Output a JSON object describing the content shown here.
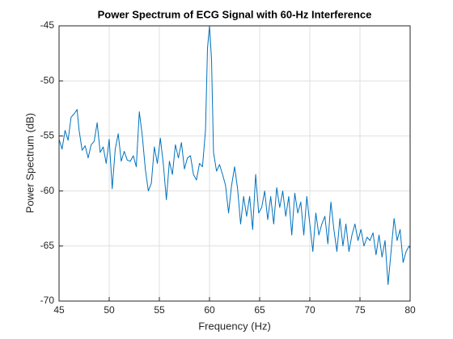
{
  "chart_data": {
    "type": "line",
    "title": "Power Spectrum of ECG Signal with 60-Hz Interference",
    "xlabel": "Frequency (Hz)",
    "ylabel": "Power Spectrum (dB)",
    "xlim": [
      45,
      80
    ],
    "xticks": [
      45,
      50,
      55,
      60,
      65,
      70,
      75,
      80
    ],
    "ylim": [
      -70,
      -45
    ],
    "yticks": [
      -70,
      -65,
      -60,
      -55,
      -50,
      -45
    ],
    "grid": true,
    "x": [
      45,
      45.3,
      45.6,
      45.9,
      46.2,
      46.5,
      46.8,
      47,
      47.3,
      47.6,
      47.9,
      48.2,
      48.5,
      48.8,
      49.1,
      49.4,
      49.7,
      50,
      50.3,
      50.6,
      50.9,
      51.2,
      51.5,
      51.8,
      52.1,
      52.4,
      52.7,
      53,
      53.3,
      53.6,
      53.9,
      54.2,
      54.5,
      54.8,
      55.1,
      55.4,
      55.7,
      56,
      56.3,
      56.6,
      56.9,
      57.2,
      57.5,
      57.8,
      58.1,
      58.4,
      58.7,
      59,
      59.3,
      59.6,
      59.8,
      60,
      60.2,
      60.4,
      60.7,
      61,
      61.3,
      61.6,
      61.9,
      62.2,
      62.5,
      62.8,
      63.1,
      63.4,
      63.7,
      64,
      64.3,
      64.6,
      64.9,
      65.2,
      65.5,
      65.8,
      66.1,
      66.4,
      66.7,
      67,
      67.3,
      67.6,
      67.9,
      68.2,
      68.5,
      68.8,
      69.1,
      69.4,
      69.7,
      70,
      70.3,
      70.6,
      70.9,
      71.2,
      71.5,
      71.8,
      72.1,
      72.4,
      72.7,
      73,
      73.3,
      73.6,
      73.9,
      74.2,
      74.5,
      74.8,
      75.1,
      75.4,
      75.7,
      76,
      76.3,
      76.6,
      76.9,
      77.2,
      77.5,
      77.8,
      78.1,
      78.4,
      78.7,
      79,
      79.3,
      79.6,
      79.9,
      80
    ],
    "series": [
      {
        "name": "Power Spectrum",
        "color": "#0072bd",
        "values": [
          -55.3,
          -56.2,
          -54.5,
          -55.4,
          -53.3,
          -53,
          -52.6,
          -54.5,
          -56.3,
          -55.9,
          -57,
          -55.8,
          -55.5,
          -53.8,
          -56.5,
          -56,
          -57.5,
          -55.3,
          -59.8,
          -56.2,
          -54.8,
          -57.3,
          -56.4,
          -57.2,
          -57.3,
          -56.8,
          -57.8,
          -52.8,
          -55,
          -58,
          -60,
          -59.3,
          -56,
          -57.5,
          -55.2,
          -57.6,
          -60.8,
          -57.3,
          -58.5,
          -55.8,
          -57,
          -55.6,
          -58,
          -57,
          -56.8,
          -58.5,
          -59,
          -57.5,
          -57.8,
          -54.5,
          -47,
          -45,
          -48,
          -56.5,
          -58.2,
          -57.6,
          -58.5,
          -59.5,
          -62,
          -59.5,
          -57.8,
          -59.8,
          -63,
          -60.5,
          -62.3,
          -60.5,
          -63.5,
          -58.5,
          -62,
          -61.5,
          -60,
          -62.6,
          -60.5,
          -63,
          -59.7,
          -61.5,
          -60,
          -62.3,
          -60.5,
          -64,
          -60.2,
          -62,
          -61,
          -64,
          -60.5,
          -63,
          -65.5,
          -62,
          -64,
          -63,
          -62.3,
          -64.8,
          -61,
          -63.5,
          -65.5,
          -62.5,
          -65,
          -63,
          -65.5,
          -64,
          -63,
          -64.5,
          -63.5,
          -65,
          -64.2,
          -64.5,
          -63.8,
          -65.8,
          -64,
          -66,
          -64.5,
          -68.5,
          -65.5,
          -62.5,
          -64.5,
          -63.5,
          -66.5,
          -65.5,
          -65,
          -65.2
        ]
      }
    ]
  }
}
